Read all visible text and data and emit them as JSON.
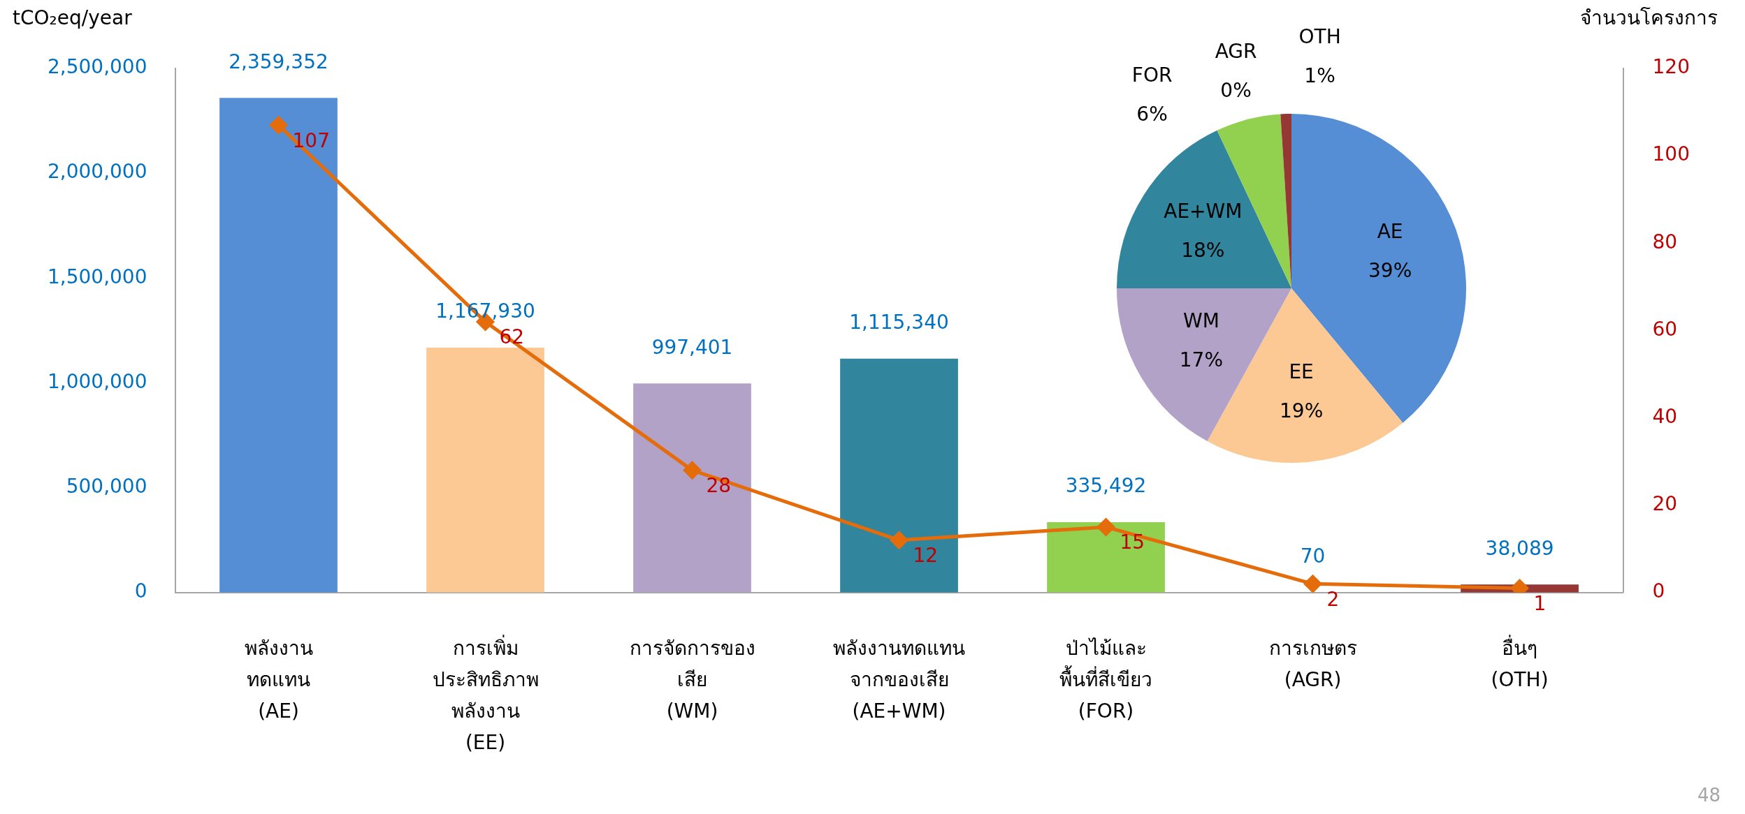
{
  "chart_data": [
    {
      "type": "bar",
      "categories": [
        "พลังงาน\nทดแทน\n(AE)",
        "การเพิ่ม\nประสิทธิภาพ\nพลังงาน\n(EE)",
        "การจัดการของ\nเสีย\n(WM)",
        "พลังงานทดแทน\nจากของเสีย\n(AE+WM)",
        "ป่าไม้และ\nพื้นที่สีเขียว\n(FOR)",
        "การเกษตร\n(AGR)",
        "อื่นๆ\n(OTH)"
      ],
      "series": [
        {
          "type": "bar",
          "colors": [
            "#558ed5",
            "#fcc995",
            "#b3a2c7",
            "#31859c",
            "#92d050",
            "#f79646",
            "#953735"
          ],
          "values": [
            2359352,
            1167930,
            997401,
            1115340,
            335492,
            70,
            38089
          ],
          "value_labels": [
            "2,359,352",
            "1,167,930",
            "997,401",
            "1,115,340",
            "335,492",
            "70",
            "38,089"
          ]
        },
        {
          "type": "line",
          "axis": "y2",
          "color": "#e46c0a",
          "values": [
            107,
            62,
            28,
            12,
            15,
            2,
            1
          ]
        }
      ],
      "ylabel": "tCO₂eq/year",
      "y2label": "จำนวนโครงการ",
      "ylim": [
        0,
        2500000
      ],
      "yticks": [
        0,
        {
          "value": 500000,
          "label": "500,000"
        },
        {
          "value": 1000000,
          "label": "1,000,000"
        },
        {
          "value": 1500000,
          "label": "1,500,000"
        },
        {
          "value": 2000000,
          "label": "2,000,000"
        },
        {
          "value": 2500000,
          "label": "2,500,000"
        }
      ],
      "y2lim": [
        0,
        120
      ],
      "y2ticks": [
        0,
        20,
        40,
        60,
        80,
        100,
        120
      ],
      "marker": "diamond",
      "line_style": "solid",
      "grid": false,
      "legend": false,
      "data_labels": true,
      "annotations": [
        "48"
      ]
    },
    {
      "type": "pie",
      "categories": [
        "AE",
        "EE",
        "WM",
        "AE+WM",
        "FOR",
        "AGR",
        "OTH"
      ],
      "values": [
        39,
        19,
        17,
        18,
        6,
        0,
        1
      ],
      "colors": [
        "#558ed5",
        "#fcc995",
        "#b3a2c7",
        "#31859c",
        "#92d050",
        "#4f81bd",
        "#953735"
      ],
      "value_labels": [
        "39%",
        "19%",
        "17%",
        "18%",
        "6%",
        "0%",
        "1%"
      ],
      "legend": false
    }
  ]
}
